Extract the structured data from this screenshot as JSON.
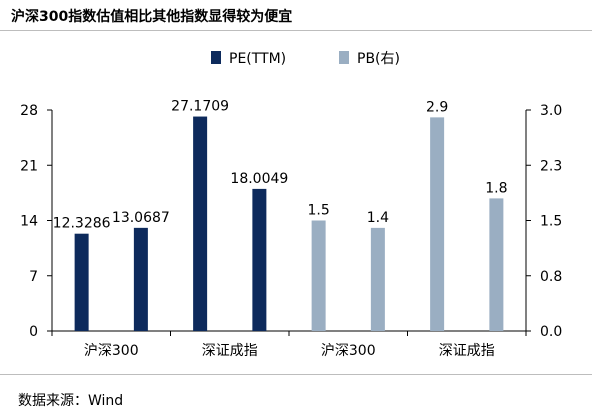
{
  "title": "沪深300指数估值相比其他指数显得较为便宜",
  "source": "数据来源：Wind",
  "colors": {
    "pe": "#0d2a5c",
    "pb": "#9aaec2",
    "axis": "#000000"
  },
  "chart_data": {
    "type": "bar",
    "title": "沪深300指数估值相比其他指数显得较为便宜",
    "categories": [
      "沪深300",
      "深证成指",
      "沪深300",
      "深证成指"
    ],
    "legend_position": "top-center",
    "grid": false,
    "series": [
      {
        "name": "PE(TTM)",
        "axis": "left",
        "values": [
          12.3286,
          13.0687,
          27.1709,
          18.0049
        ],
        "labels": [
          "12.3286",
          "13.0687",
          "27.1709",
          "18.0049"
        ]
      },
      {
        "name": "PB(右)",
        "axis": "right",
        "values": [
          1.5,
          1.4,
          2.9,
          1.8
        ],
        "labels": [
          "1.5",
          "1.4",
          "2.9",
          "1.8"
        ]
      }
    ],
    "y_left": {
      "ylim": [
        0,
        28
      ],
      "ticks": [
        "0",
        "7",
        "14",
        "21",
        "28"
      ]
    },
    "y_right": {
      "ylim": [
        0,
        3.0
      ],
      "ticks": [
        "0.0",
        "0.8",
        "1.5",
        "2.3",
        "3.0"
      ]
    }
  }
}
